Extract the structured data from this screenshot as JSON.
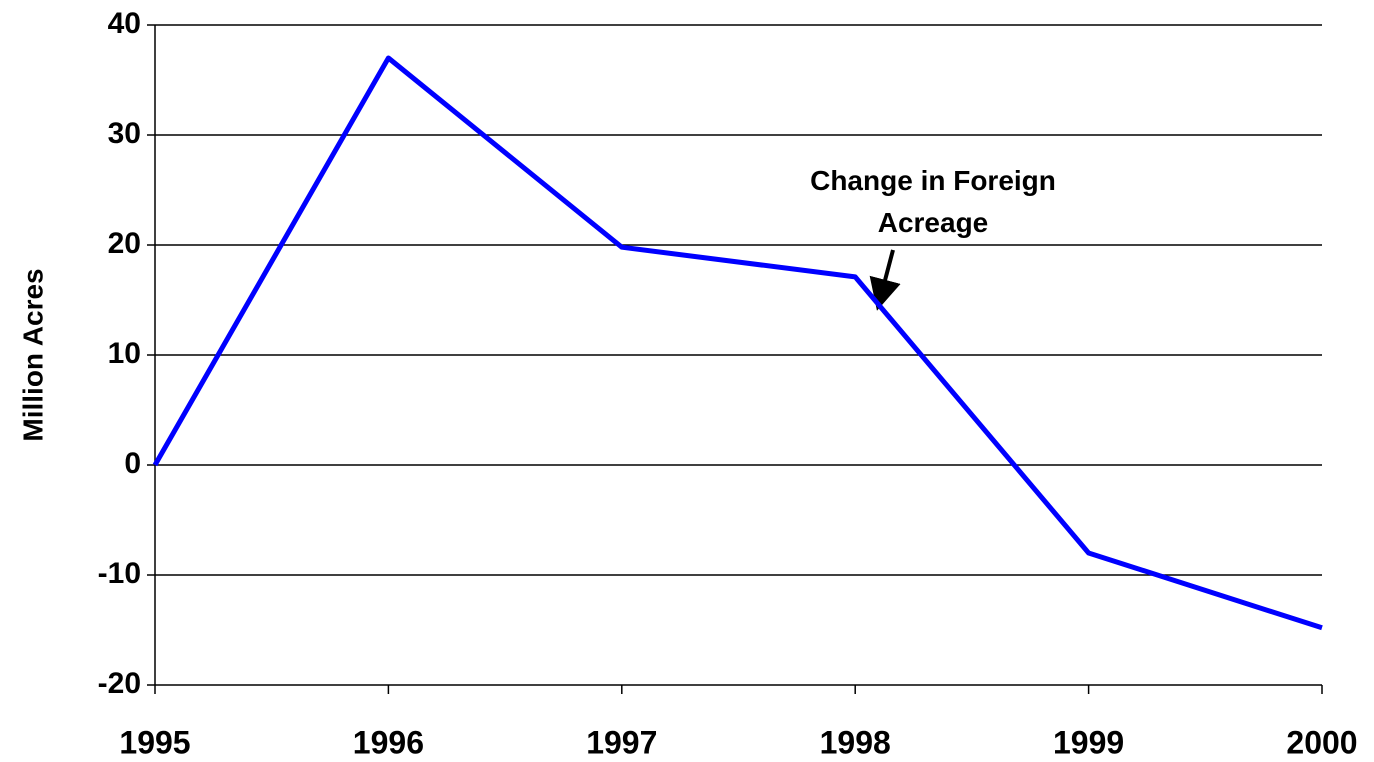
{
  "chart_data": {
    "type": "line",
    "y_label": "Million Acres",
    "annotation": "Change in Foreign Acreage",
    "x": [
      1995,
      1996,
      1997,
      1998,
      1999,
      2000
    ],
    "series": [
      {
        "name": "Change in Foreign Acreage",
        "color": "#0000ff",
        "values": [
          0,
          37,
          19.8,
          17.1,
          -8,
          -14.8
        ]
      }
    ],
    "xlim": [
      1995,
      2000
    ],
    "xticks": [
      1995,
      1996,
      1997,
      1998,
      1999,
      2000
    ],
    "ylim": [
      -20,
      40
    ],
    "yticks": [
      -20,
      -10,
      0,
      10,
      20,
      30,
      40
    ],
    "grid": true
  }
}
